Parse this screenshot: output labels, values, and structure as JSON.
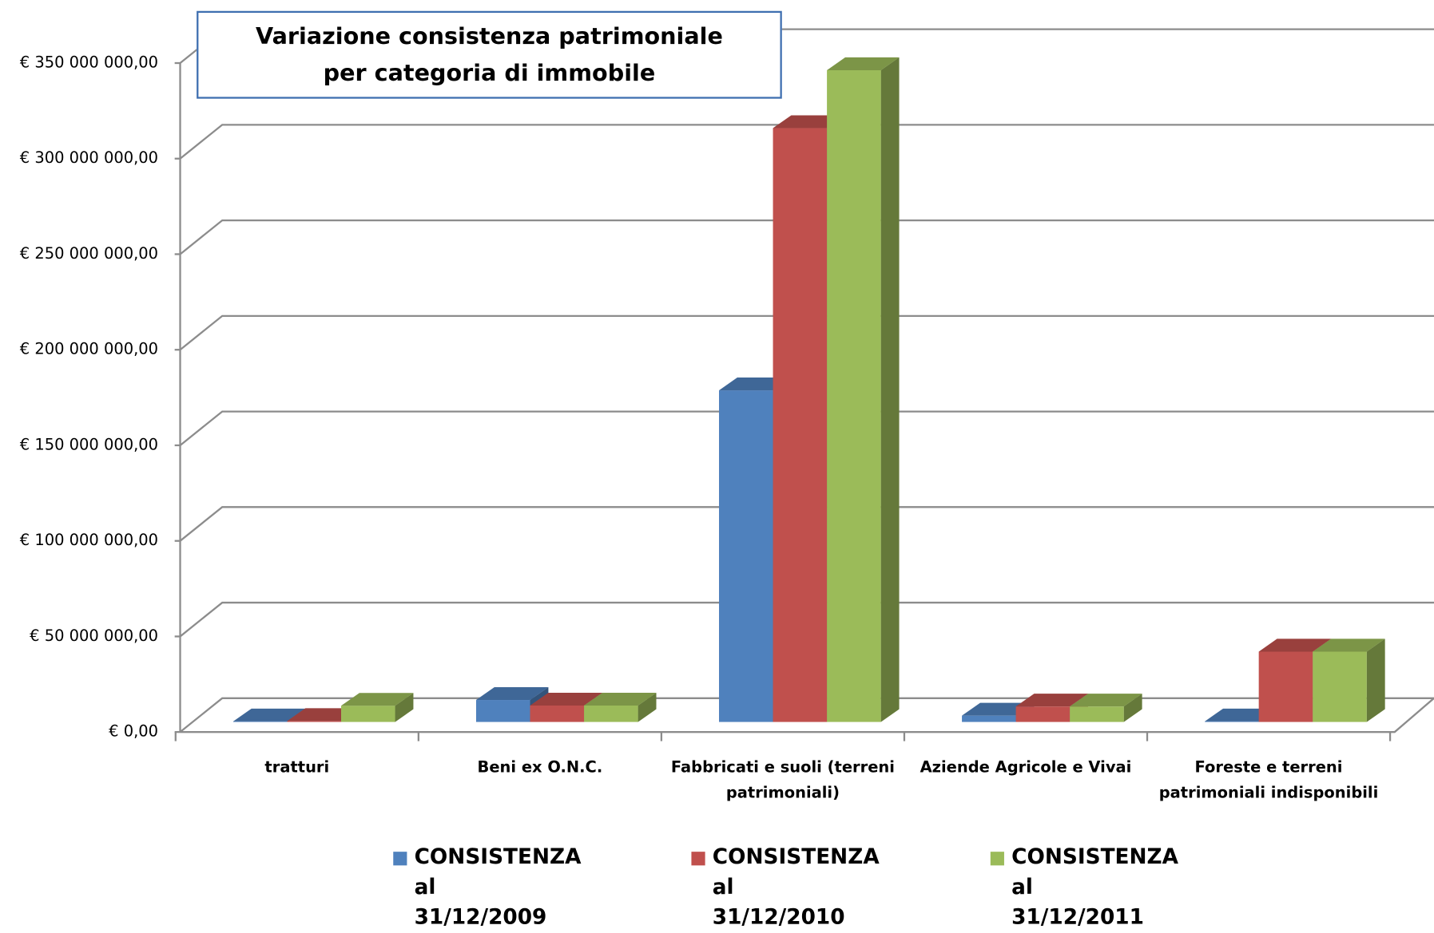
{
  "chart_data": {
    "type": "bar3d",
    "title": "Variazione consistenza patrimoniale per categoria di immobile",
    "categories": [
      "tratturi",
      "Beni ex O.N.C.",
      "Fabbricati e suoli (terreni patrimoniali)",
      "Aziende Agricole e Vivai",
      "Foreste e terreni patrimoniali indisponibili"
    ],
    "series": [
      {
        "name": "CONSISTENZA al 31/12/2009",
        "color": "#4f81bd",
        "values": [
          300000,
          11500000,
          173500000,
          3300000,
          300000
        ]
      },
      {
        "name": "CONSISTENZA al 31/12/2010",
        "color": "#c0504d",
        "values": [
          500000,
          8600000,
          310700000,
          8100000,
          36800000
        ]
      },
      {
        "name": "CONSISTENZA al 31/12/2011",
        "color": "#9bbb59",
        "values": [
          8500000,
          8600000,
          341000000,
          8100000,
          36800000
        ]
      }
    ],
    "ylim": [
      0,
      350000000
    ],
    "yticks": [
      {
        "value": 0,
        "label": "€ 0,00"
      },
      {
        "value": 50000000,
        "label": "€ 50 000 000,00"
      },
      {
        "value": 100000000,
        "label": "€ 100 000 000,00"
      },
      {
        "value": 150000000,
        "label": "€ 150 000 000,00"
      },
      {
        "value": 200000000,
        "label": "€ 200 000 000,00"
      },
      {
        "value": 250000000,
        "label": "€ 250 000 000,00"
      },
      {
        "value": 300000000,
        "label": "€ 300 000 000,00"
      },
      {
        "value": 350000000,
        "label": "€ 350 000 000,00"
      }
    ],
    "grid": true,
    "legend": "bottom"
  }
}
